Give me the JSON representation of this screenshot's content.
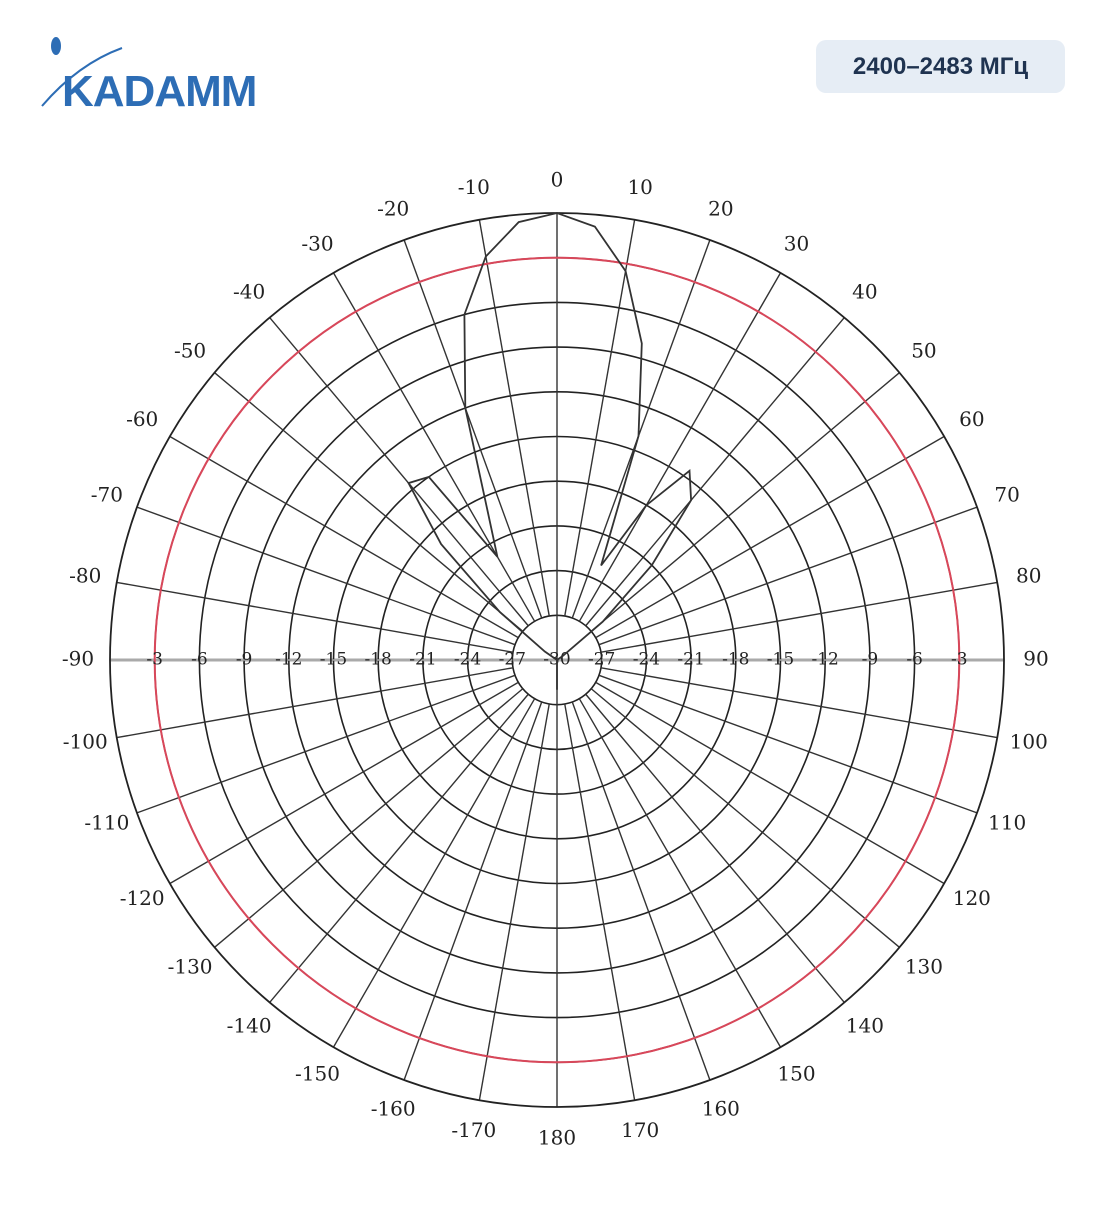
{
  "header": {
    "logo": "KADAMM",
    "band": "2400–2483 МГц"
  },
  "chart_data": {
    "type": "polar",
    "x": [
      -180,
      -175,
      -170,
      -165,
      -160,
      -155,
      -150,
      -145,
      -140,
      -135,
      -130,
      -125,
      -120,
      -115,
      -110,
      -105,
      -100,
      -95,
      -90,
      -85,
      -80,
      -75,
      -70,
      -65,
      -60,
      -55,
      -50,
      -45,
      -40,
      -35,
      -30,
      -25,
      -20,
      -15,
      -10,
      -5,
      0,
      5,
      10,
      15,
      20,
      25,
      30,
      35,
      40,
      45,
      50,
      55,
      60,
      65,
      70,
      75,
      80,
      85,
      90,
      95,
      100,
      105,
      110,
      115,
      120,
      125,
      130,
      135,
      140,
      145,
      150,
      155,
      160,
      165,
      170,
      175
    ],
    "series": [
      {
        "color": "#333333",
        "values": [
          -28,
          -30,
          -30,
          -30,
          -30,
          -30,
          -30,
          -30,
          -30,
          -30,
          -30,
          -30,
          -30,
          -30,
          -30,
          -30,
          -30,
          -30,
          -30,
          -30,
          -30,
          -30,
          -30,
          -30,
          -30,
          -29,
          -25,
          -19,
          -14.5,
          -15,
          -22,
          -19,
          -12,
          -6,
          -2.5,
          -0.5,
          0,
          -0.8,
          -3.5,
          -8,
          -14,
          -23,
          -18,
          -14.5,
          -16,
          -21,
          -26,
          -29.5,
          -30,
          -30,
          -30,
          -30,
          -30,
          -30,
          -30,
          -30,
          -30,
          -30,
          -30,
          -30,
          -30,
          -30,
          -30,
          -30,
          -30,
          -30,
          -30,
          -30,
          -30,
          -30,
          -30,
          -30
        ]
      }
    ],
    "rlim": [
      -30,
      0
    ],
    "rticks": [
      -30,
      -27,
      -24,
      -21,
      -18,
      -15,
      -12,
      -9,
      -6,
      -3
    ],
    "thetaticks": [
      -170,
      -160,
      -150,
      -140,
      -130,
      -120,
      -110,
      -100,
      -90,
      -80,
      -70,
      -60,
      -50,
      -40,
      -30,
      -20,
      -10,
      0,
      10,
      20,
      30,
      40,
      50,
      60,
      70,
      80,
      90,
      100,
      110,
      120,
      130,
      140,
      150,
      160,
      170,
      180
    ],
    "grid": true,
    "highlight_ring": {
      "value": -3,
      "color": "#d9475a"
    }
  }
}
